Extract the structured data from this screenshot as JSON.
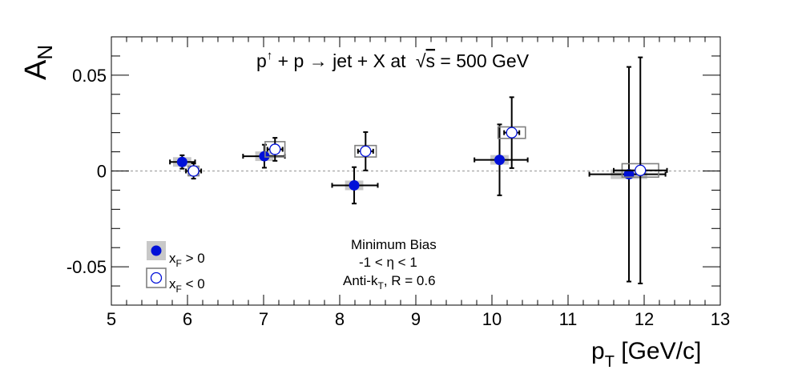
{
  "chart_data": {
    "type": "scatter",
    "title": {
      "p": "p",
      "up_arrow": "↑",
      "plus_p": " + p ",
      "arrow": "→",
      "jet_x": " jet + X at ",
      "sqrt": "√",
      "s": "s",
      "energy": " = 500 GeV"
    },
    "xlabel": {
      "main": "p",
      "sub": "T",
      "unit": " [GeV/c]"
    },
    "ylabel": {
      "main": "A",
      "sub": "N"
    },
    "xlim": [
      5,
      13
    ],
    "ylim": [
      -0.07,
      0.07
    ],
    "x_ticks": [
      "5",
      "6",
      "7",
      "8",
      "9",
      "10",
      "11",
      "12",
      "13"
    ],
    "y_ticks": [
      {
        "value": 0.05,
        "label": "0.05"
      },
      {
        "value": 0,
        "label": "0"
      },
      {
        "value": -0.05,
        "label": "-0.05"
      }
    ],
    "zero_line": true,
    "annotations": {
      "line1": "Minimum Bias",
      "line2": "-1 < η < 1",
      "line3_main": "Anti-k",
      "line3_sub": "T",
      "line3_rest": ", R = 0.6"
    },
    "legend": {
      "placement": "bottom-left",
      "entries": [
        {
          "main": "x",
          "sub": "F",
          "rest": " > 0"
        },
        {
          "main": "x",
          "sub": "F",
          "rest": " < 0"
        }
      ]
    },
    "colors": {
      "marker": "#0010d8",
      "syst_fill": "#c8c8c8",
      "syst_box": "#808080",
      "zero_line": "#b0b0b0"
    },
    "series": [
      {
        "style": "filled",
        "points": [
          {
            "x": 5.93,
            "y": 0.0047,
            "xerr_lo": 0.16,
            "xerr_hi": 0.17,
            "yerr": 0.0035,
            "sys_dx": 0.12,
            "sys_dy": 0.0025
          },
          {
            "x": 7.01,
            "y": 0.0077,
            "xerr_lo": 0.28,
            "xerr_hi": 0.27,
            "yerr": 0.006,
            "sys_dx": 0.12,
            "sys_dy": 0.0025
          },
          {
            "x": 8.19,
            "y": -0.0075,
            "xerr_lo": 0.29,
            "xerr_hi": 0.31,
            "yerr": 0.0095,
            "sys_dx": 0.12,
            "sys_dy": 0.0025
          },
          {
            "x": 10.1,
            "y": 0.0058,
            "xerr_lo": 0.33,
            "xerr_hi": 0.37,
            "yerr": 0.0185,
            "sys_dx": 0.12,
            "sys_dy": 0.0025
          },
          {
            "x": 11.8,
            "y": -0.0017,
            "xerr_lo": 0.52,
            "xerr_hi": 0.48,
            "yerr": 0.056,
            "sys_dx": 0.24,
            "sys_dy": 0.0025
          }
        ]
      },
      {
        "style": "open",
        "points": [
          {
            "x": 6.08,
            "y": 0.0,
            "xerr_lo": 0.1,
            "xerr_hi": 0.1,
            "yerr": 0.004,
            "sys_dx": 0.07,
            "sys_dy": 0.0025
          },
          {
            "x": 7.15,
            "y": 0.0113,
            "xerr_lo": 0.1,
            "xerr_hi": 0.1,
            "yerr": 0.006,
            "sys_dx": 0.13,
            "sys_dy": 0.004
          },
          {
            "x": 8.34,
            "y": 0.0103,
            "xerr_lo": 0.1,
            "xerr_hi": 0.1,
            "yerr": 0.01,
            "sys_dx": 0.14,
            "sys_dy": 0.003
          },
          {
            "x": 10.26,
            "y": 0.02,
            "xerr_lo": 0.1,
            "xerr_hi": 0.1,
            "yerr": 0.0185,
            "sys_dx": 0.18,
            "sys_dy": 0.003
          },
          {
            "x": 11.95,
            "y": 0.0003,
            "xerr_lo": 0.35,
            "xerr_hi": 0.35,
            "yerr": 0.059,
            "sys_dx": 0.24,
            "sys_dy": 0.0035
          }
        ]
      }
    ]
  }
}
